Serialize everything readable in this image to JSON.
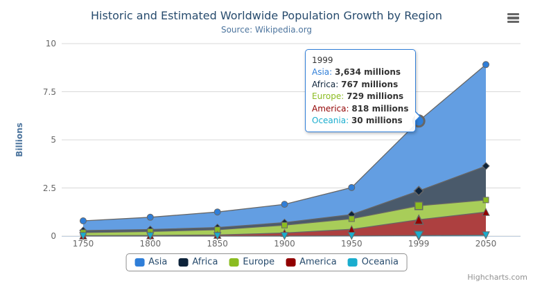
{
  "chart_data": {
    "type": "area",
    "stacking": "normal",
    "title": "Historic and Estimated Worldwide Population Growth by Region",
    "subtitle": "Source: Wikipedia.org",
    "ylabel": "Billions",
    "xlabel": "",
    "unit": "millions",
    "categories": [
      "1750",
      "1800",
      "1850",
      "1900",
      "1950",
      "1999",
      "2050"
    ],
    "series": [
      {
        "name": "Asia",
        "color": "#2f7ed8",
        "marker": "circle",
        "values": [
          502,
          635,
          809,
          947,
          1402,
          3634,
          5268
        ]
      },
      {
        "name": "Africa",
        "color": "#0d233a",
        "marker": "diamond",
        "values": [
          106,
          107,
          111,
          133,
          221,
          767,
          1766
        ]
      },
      {
        "name": "Europe",
        "color": "#8bbc21",
        "marker": "square",
        "values": [
          163,
          203,
          276,
          408,
          547,
          729,
          628
        ]
      },
      {
        "name": "America",
        "color": "#910000",
        "marker": "triangle",
        "values": [
          18,
          31,
          54,
          156,
          339,
          818,
          1201
        ]
      },
      {
        "name": "Oceania",
        "color": "#1aadce",
        "marker": "triangle-down",
        "values": [
          2,
          2,
          2,
          6,
          13,
          30,
          46
        ]
      }
    ],
    "stack_order_bottom_to_top": [
      "Oceania",
      "America",
      "Europe",
      "Africa",
      "Asia"
    ],
    "yticks": {
      "values": [
        0,
        2.5,
        5,
        7.5,
        10
      ],
      "labels": [
        "0",
        "2.5",
        "5",
        "7.5",
        "10"
      ]
    },
    "ylim": [
      0,
      10
    ],
    "grid": true,
    "legend_position": "bottom",
    "hovered_category_index": 5,
    "series_line_color": "#666666",
    "fill_opacity": 0.75
  },
  "tooltip": {
    "title": "1999",
    "border_color": "#2f7ed8",
    "rows": [
      {
        "name": "Asia",
        "color": "#2f7ed8",
        "value": "3,634 millions"
      },
      {
        "name": "Africa",
        "color": "#0d233a",
        "value": "767 millions"
      },
      {
        "name": "Europe",
        "color": "#8bbc21",
        "value": "729 millions"
      },
      {
        "name": "America",
        "color": "#910000",
        "value": "818 millions"
      },
      {
        "name": "Oceania",
        "color": "#1aadce",
        "value": "30 millions"
      }
    ]
  },
  "credits": "Highcharts.com",
  "icons": {
    "export_menu": "hamburger"
  },
  "colors": {
    "title": "#274b6d",
    "subtitle": "#4d759e",
    "axis_label": "#666666",
    "axis_line": "#C0D0E0",
    "gridline": "#D8D8D8",
    "legend_text": "#274b6d",
    "credits": "#909090"
  }
}
